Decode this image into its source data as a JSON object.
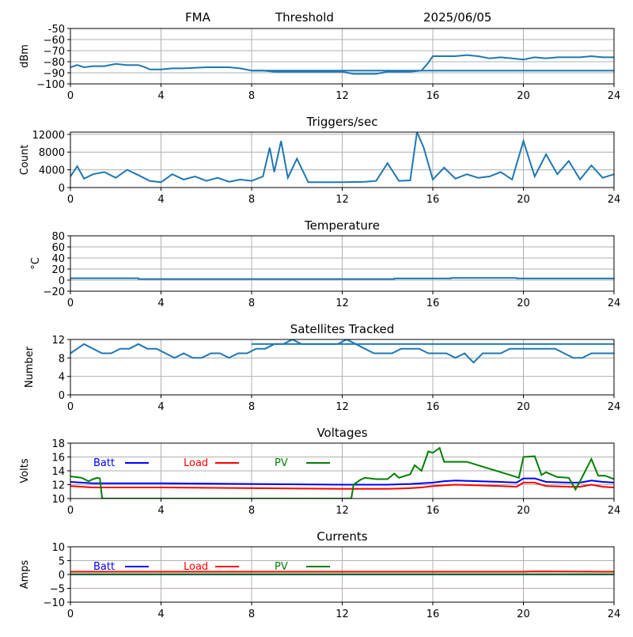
{
  "header": {
    "station": "FMA",
    "label": "Threshold",
    "date": "2025/06/05"
  },
  "colors": {
    "series": "#1f77b4",
    "batt": "#0000ff",
    "load": "#ff0000",
    "pv": "#008000",
    "grid": "#b0b0b0"
  },
  "chart_data": [
    {
      "type": "line",
      "title": "",
      "xlabel": "",
      "ylabel": "dBm",
      "xlim": [
        0,
        24
      ],
      "ylim": [
        -100,
        -50
      ],
      "xticks": [
        "0",
        "4",
        "8",
        "12",
        "16",
        "20",
        "24"
      ],
      "yticks": [
        "-50",
        "−60",
        "−70",
        "−80",
        "−90",
        "−100"
      ],
      "ytick_values": [
        -50,
        -60,
        -70,
        -80,
        -90,
        -100
      ],
      "grid": true,
      "series": [
        {
          "name": "",
          "x": [
            0,
            0.3,
            0.6,
            1,
            1.5,
            2,
            2.5,
            3,
            3.3,
            3.5,
            4,
            4.5,
            5,
            6,
            7,
            7.5,
            8,
            8.5,
            9,
            10,
            11,
            12,
            12.5,
            13,
            13.5,
            14,
            15,
            15.5,
            15.8,
            16,
            16.5,
            17,
            17.5,
            18,
            18.5,
            19,
            19.5,
            20,
            20.5,
            21,
            21.5,
            22,
            22.5,
            23,
            23.5,
            24
          ],
          "values": [
            -85,
            -83,
            -85,
            -84,
            -84,
            -82,
            -83,
            -83,
            -85,
            -87,
            -87,
            -86,
            -86,
            -85,
            -85,
            -86,
            -88,
            -88,
            -89,
            -89,
            -89,
            -89,
            -91,
            -91,
            -91,
            -89,
            -89,
            -88,
            -81,
            -75,
            -75,
            -75,
            -74,
            -75,
            -77,
            -76,
            -77,
            -78,
            -76,
            -77,
            -76,
            -76,
            -76,
            -75,
            -76,
            -76
          ]
        },
        {
          "name": "",
          "x": [
            8,
            12,
            16,
            20,
            24
          ],
          "values": [
            -88,
            -88,
            -88,
            -88,
            -88
          ]
        }
      ]
    },
    {
      "type": "line",
      "title": "Triggers/sec",
      "xlabel": "",
      "ylabel": "Count",
      "xlim": [
        0,
        24
      ],
      "ylim": [
        0,
        12500
      ],
      "xticks": [
        "0",
        "4",
        "8",
        "12",
        "16",
        "20",
        "24"
      ],
      "yticks": [
        "0",
        "4000",
        "8000",
        "12000"
      ],
      "ytick_values": [
        0,
        4000,
        8000,
        12000
      ],
      "grid": true,
      "series": [
        {
          "name": "",
          "x": [
            0,
            0.3,
            0.6,
            1,
            1.5,
            2,
            2.5,
            3,
            3.5,
            4,
            4.5,
            5,
            5.5,
            6,
            6.5,
            7,
            7.5,
            8,
            8.5,
            8.8,
            9,
            9.3,
            9.6,
            10,
            10.5,
            11,
            12,
            13,
            13.5,
            14,
            14.5,
            15,
            15.3,
            15.6,
            16,
            16.5,
            17,
            17.5,
            18,
            18.5,
            19,
            19.5,
            20,
            20.5,
            21,
            21.5,
            22,
            22.5,
            23,
            23.5,
            24
          ],
          "values": [
            2500,
            4800,
            2000,
            3000,
            3500,
            2200,
            4000,
            2800,
            1500,
            1200,
            3000,
            1800,
            2500,
            1500,
            2200,
            1300,
            1800,
            1500,
            2500,
            9000,
            3500,
            10500,
            2200,
            6500,
            1200,
            1200,
            1200,
            1300,
            1500,
            5500,
            1500,
            1600,
            12500,
            9000,
            1800,
            4500,
            2000,
            3000,
            2200,
            2500,
            3500,
            1800,
            10500,
            2500,
            7500,
            3000,
            6000,
            1800,
            5000,
            2200,
            3000
          ]
        }
      ]
    },
    {
      "type": "line",
      "title": "Temperature",
      "xlabel": "",
      "ylabel": "°C",
      "xlim": [
        0,
        24
      ],
      "ylim": [
        -20,
        80
      ],
      "xticks": [
        "0",
        "4",
        "8",
        "12",
        "16",
        "20",
        "24"
      ],
      "yticks": [
        "−20",
        "0",
        "20",
        "40",
        "60",
        "80"
      ],
      "ytick_values": [
        -20,
        0,
        20,
        40,
        60,
        80
      ],
      "grid": true,
      "series": [
        {
          "name": "",
          "x": [
            0,
            3,
            3.01,
            14.3,
            14.31,
            16.8,
            16.81,
            19.7,
            19.71,
            24
          ],
          "values": [
            3.5,
            3.5,
            2,
            2,
            3,
            3,
            4,
            4,
            3,
            3
          ]
        }
      ]
    },
    {
      "type": "line",
      "title": "Satellites Tracked",
      "xlabel": "",
      "ylabel": "Number",
      "xlim": [
        0,
        24
      ],
      "ylim": [
        0,
        12
      ],
      "xticks": [
        "0",
        "4",
        "8",
        "12",
        "16",
        "20",
        "24"
      ],
      "yticks": [
        "0",
        "4",
        "8",
        "12"
      ],
      "ytick_values": [
        0,
        4,
        8,
        12
      ],
      "grid": true,
      "series": [
        {
          "name": "",
          "x": [
            0,
            0.3,
            0.6,
            1,
            1.4,
            1.8,
            2.2,
            2.6,
            3,
            3.4,
            3.8,
            4.2,
            4.6,
            5,
            5.4,
            5.8,
            6.2,
            6.6,
            7,
            7.4,
            7.8,
            8.2,
            8.6,
            9,
            9.4,
            9.8,
            10.2,
            10.6,
            11,
            11.4,
            11.8,
            12.2,
            12.6,
            13,
            13.4,
            13.8,
            14.2,
            14.6,
            15,
            15.4,
            15.8,
            16.2,
            16.6,
            17,
            17.4,
            17.8,
            18.2,
            18.6,
            19,
            19.4,
            19.8,
            20.2,
            20.6,
            21,
            21.4,
            21.8,
            22.2,
            22.6,
            23,
            23.4,
            23.8,
            24
          ],
          "values": [
            9,
            10,
            11,
            10,
            9,
            9,
            10,
            10,
            11,
            10,
            10,
            9,
            8,
            9,
            8,
            8,
            9,
            9,
            8,
            9,
            9,
            10,
            10,
            11,
            11,
            12,
            11,
            11,
            11,
            11,
            11,
            12,
            11,
            10,
            9,
            9,
            9,
            10,
            10,
            10,
            9,
            9,
            9,
            8,
            9,
            7,
            9,
            9,
            9,
            10,
            10,
            10,
            10,
            10,
            10,
            9,
            8,
            8,
            9,
            9,
            9,
            9
          ]
        },
        {
          "name": "",
          "x": [
            8,
            12,
            16,
            20,
            24
          ],
          "values": [
            11,
            11,
            11,
            11,
            11
          ]
        }
      ]
    },
    {
      "type": "line",
      "title": "Voltages",
      "xlabel": "",
      "ylabel": "Volts",
      "xlim": [
        0,
        24
      ],
      "ylim": [
        10,
        18
      ],
      "xticks": [
        "0",
        "4",
        "8",
        "12",
        "16",
        "20",
        "24"
      ],
      "yticks": [
        "10",
        "12",
        "14",
        "16",
        "18"
      ],
      "ytick_values": [
        10,
        12,
        14,
        16,
        18
      ],
      "grid": true,
      "legend": "top-left",
      "series": [
        {
          "name": "Batt",
          "color_key": "batt",
          "x": [
            0,
            0.5,
            1,
            2,
            4,
            8,
            12,
            14,
            15,
            15.5,
            16,
            16.5,
            17,
            18,
            19,
            19.7,
            20,
            20.5,
            21,
            22,
            22.5,
            23,
            23.5,
            24
          ],
          "values": [
            12.4,
            12.3,
            12.2,
            12.2,
            12.2,
            12.1,
            12,
            12,
            12.1,
            12.2,
            12.3,
            12.5,
            12.6,
            12.5,
            12.4,
            12.3,
            12.9,
            12.9,
            12.4,
            12.3,
            12.3,
            12.6,
            12.4,
            12.3
          ]
        },
        {
          "name": "Load",
          "color_key": "load",
          "x": [
            0,
            0.5,
            1,
            2,
            4,
            8,
            12,
            14,
            15,
            15.5,
            16,
            16.5,
            17,
            18,
            19,
            19.7,
            20,
            20.5,
            21,
            22,
            22.5,
            23,
            23.5,
            24
          ],
          "values": [
            11.8,
            11.7,
            11.6,
            11.6,
            11.6,
            11.5,
            11.4,
            11.4,
            11.5,
            11.6,
            11.8,
            11.9,
            12,
            11.9,
            11.8,
            11.7,
            12.3,
            12.3,
            11.8,
            11.7,
            11.7,
            12,
            11.7,
            11.6
          ]
        },
        {
          "name": "PV",
          "color_key": "pv",
          "x": [
            0,
            0.5,
            0.8,
            1,
            1.2,
            1.3,
            1.4,
            12.4,
            12.5,
            12.8,
            13,
            13.5,
            14,
            14.3,
            14.5,
            15,
            15.2,
            15.5,
            15.8,
            16,
            16.3,
            16.5,
            17,
            17.5,
            19.5,
            19.8,
            20,
            20.5,
            20.8,
            21,
            21.5,
            22,
            22.3,
            22.5,
            23,
            23.3,
            23.6,
            24
          ],
          "values": [
            13.2,
            13,
            12.5,
            12.8,
            13,
            12.9,
            10,
            10,
            12,
            12.7,
            13,
            12.8,
            12.8,
            13.6,
            13,
            13.5,
            14.8,
            14,
            16.8,
            16.6,
            17.3,
            15.3,
            15.3,
            15.3,
            13.3,
            13,
            16,
            16.1,
            13.4,
            13.8,
            13.1,
            13,
            11.3,
            12.5,
            15.7,
            13.3,
            13.3,
            12.8
          ]
        }
      ]
    },
    {
      "type": "line",
      "title": "Currents",
      "xlabel": "",
      "ylabel": "Amps",
      "xlim": [
        0,
        24
      ],
      "ylim": [
        -10,
        10
      ],
      "xticks": [
        "0",
        "4",
        "8",
        "12",
        "16",
        "20",
        "24"
      ],
      "yticks": [
        "−10",
        "−5",
        "0",
        "5",
        "10"
      ],
      "ytick_values": [
        -10,
        -5,
        0,
        5,
        10
      ],
      "grid": true,
      "legend": "top-left",
      "series": [
        {
          "name": "Batt",
          "color_key": "batt",
          "x": [
            0,
            4,
            8,
            12,
            16,
            20,
            24
          ],
          "values": [
            0,
            0,
            0,
            0,
            0,
            0,
            0
          ]
        },
        {
          "name": "Load",
          "color_key": "load",
          "x": [
            0,
            4,
            8,
            12,
            16,
            20,
            20.5,
            24
          ],
          "values": [
            1,
            1,
            1,
            1,
            1,
            1,
            1.1,
            1
          ]
        },
        {
          "name": "PV",
          "color_key": "pv",
          "x": [
            0,
            4,
            8,
            12,
            16,
            20,
            24
          ],
          "values": [
            0.1,
            0.1,
            0.1,
            0.1,
            0.1,
            0.1,
            0.1
          ]
        }
      ]
    }
  ]
}
